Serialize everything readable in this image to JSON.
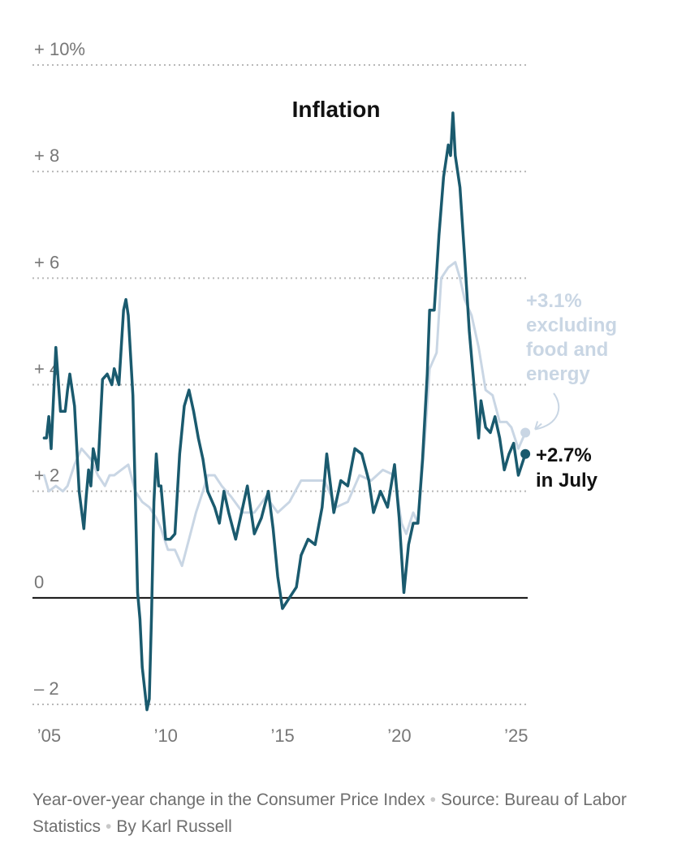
{
  "chart_data": {
    "type": "line",
    "title": "Inflation",
    "xlabel": "",
    "ylabel": "",
    "xlim": [
      2004.5,
      2025.7
    ],
    "ylim": [
      -2,
      10
    ],
    "y_ticks": [
      {
        "value": 10,
        "label": "+ 10%"
      },
      {
        "value": 8,
        "label": "+   8"
      },
      {
        "value": 6,
        "label": "+   6"
      },
      {
        "value": 4,
        "label": "+   4"
      },
      {
        "value": 2,
        "label": "+   2"
      },
      {
        "value": 0,
        "label": "0"
      },
      {
        "value": -2,
        "label": "–   2"
      }
    ],
    "x_ticks": [
      {
        "value": 2005,
        "label": "’05"
      },
      {
        "value": 2010,
        "label": "’10"
      },
      {
        "value": 2015,
        "label": "’15"
      },
      {
        "value": 2020,
        "label": "’20"
      },
      {
        "value": 2025,
        "label": "’25"
      }
    ],
    "grid": "horizontal dotted",
    "series": [
      {
        "name": "excluding food and energy",
        "color": "#c9d6e4",
        "x": [
          2005.0,
          2005.2,
          2005.5,
          2005.8,
          2006.0,
          2006.3,
          2006.6,
          2006.8,
          2007.0,
          2007.3,
          2007.6,
          2007.8,
          2008.0,
          2008.3,
          2008.6,
          2008.9,
          2009.2,
          2009.5,
          2009.8,
          2010.0,
          2010.3,
          2010.6,
          2010.9,
          2011.2,
          2011.5,
          2011.8,
          2012.0,
          2012.3,
          2012.6,
          2013.0,
          2013.5,
          2014.0,
          2014.5,
          2015.0,
          2015.5,
          2016.0,
          2016.5,
          2017.0,
          2017.5,
          2018.0,
          2018.5,
          2019.0,
          2019.5,
          2020.0,
          2020.3,
          2020.5,
          2020.8,
          2021.0,
          2021.3,
          2021.5,
          2021.8,
          2022.0,
          2022.3,
          2022.6,
          2022.8,
          2023.0,
          2023.3,
          2023.6,
          2023.9,
          2024.2,
          2024.5,
          2024.8,
          2025.0,
          2025.3,
          2025.6
        ],
        "values": [
          2.3,
          2.0,
          2.1,
          2.0,
          2.1,
          2.5,
          2.8,
          2.7,
          2.6,
          2.3,
          2.1,
          2.3,
          2.3,
          2.4,
          2.5,
          2.0,
          1.8,
          1.7,
          1.5,
          1.3,
          0.9,
          0.9,
          0.6,
          1.1,
          1.6,
          2.0,
          2.3,
          2.3,
          2.1,
          1.9,
          1.6,
          1.6,
          1.9,
          1.6,
          1.8,
          2.2,
          2.2,
          2.2,
          1.7,
          1.8,
          2.3,
          2.2,
          2.4,
          2.3,
          1.4,
          1.2,
          1.6,
          1.4,
          3.0,
          4.3,
          4.6,
          6.0,
          6.2,
          6.3,
          6.0,
          5.6,
          5.3,
          4.7,
          3.9,
          3.8,
          3.3,
          3.3,
          3.2,
          2.8,
          3.1
        ]
      },
      {
        "name": "",
        "color": "#1a5a6e",
        "x": [
          2005.0,
          2005.1,
          2005.2,
          2005.3,
          2005.5,
          2005.7,
          2005.9,
          2006.0,
          2006.1,
          2006.3,
          2006.5,
          2006.7,
          2006.8,
          2006.9,
          2007.0,
          2007.1,
          2007.3,
          2007.5,
          2007.7,
          2007.9,
          2008.0,
          2008.2,
          2008.4,
          2008.5,
          2008.6,
          2008.8,
          2009.0,
          2009.1,
          2009.2,
          2009.4,
          2009.5,
          2009.6,
          2009.7,
          2009.8,
          2009.9,
          2010.0,
          2010.2,
          2010.4,
          2010.6,
          2010.8,
          2011.0,
          2011.2,
          2011.4,
          2011.6,
          2011.8,
          2012.0,
          2012.3,
          2012.5,
          2012.7,
          2012.9,
          2013.2,
          2013.5,
          2013.7,
          2014.0,
          2014.3,
          2014.6,
          2014.8,
          2015.0,
          2015.2,
          2015.5,
          2015.8,
          2016.0,
          2016.3,
          2016.6,
          2016.9,
          2017.1,
          2017.4,
          2017.7,
          2018.0,
          2018.3,
          2018.6,
          2018.9,
          2019.1,
          2019.4,
          2019.7,
          2020.0,
          2020.2,
          2020.4,
          2020.6,
          2020.8,
          2021.0,
          2021.2,
          2021.4,
          2021.5,
          2021.7,
          2021.9,
          2022.1,
          2022.3,
          2022.4,
          2022.5,
          2022.6,
          2022.8,
          2023.0,
          2023.2,
          2023.4,
          2023.6,
          2023.7,
          2023.9,
          2024.1,
          2024.3,
          2024.5,
          2024.7,
          2024.9,
          2025.1,
          2025.3,
          2025.6
        ],
        "values": [
          3.0,
          3.0,
          3.4,
          2.8,
          4.7,
          3.5,
          3.5,
          3.9,
          4.2,
          3.6,
          2.0,
          1.3,
          1.9,
          2.4,
          2.1,
          2.8,
          2.4,
          4.1,
          4.2,
          4.0,
          4.3,
          4.0,
          5.4,
          5.6,
          5.3,
          3.8,
          0.1,
          -0.4,
          -1.3,
          -2.1,
          -1.9,
          -0.3,
          1.8,
          2.7,
          2.1,
          2.1,
          1.1,
          1.1,
          1.2,
          2.7,
          3.6,
          3.9,
          3.5,
          3.0,
          2.6,
          2.0,
          1.7,
          1.4,
          2.0,
          1.6,
          1.1,
          1.7,
          2.1,
          1.2,
          1.5,
          2.0,
          1.3,
          0.4,
          -0.2,
          0.0,
          0.2,
          0.8,
          1.1,
          1.0,
          1.7,
          2.7,
          1.6,
          2.2,
          2.1,
          2.8,
          2.7,
          2.2,
          1.6,
          2.0,
          1.7,
          2.5,
          1.5,
          0.1,
          1.0,
          1.4,
          1.4,
          2.6,
          4.2,
          5.4,
          5.4,
          6.8,
          7.9,
          8.5,
          8.3,
          9.1,
          8.3,
          7.7,
          6.4,
          5.0,
          4.0,
          3.0,
          3.7,
          3.2,
          3.1,
          3.4,
          3.0,
          2.4,
          2.7,
          2.9,
          2.3,
          2.7
        ]
      }
    ],
    "annotations": [
      {
        "series": 0,
        "value": 3.1,
        "label_lines": [
          "+3.1%",
          "excluding",
          "food and",
          "energy"
        ]
      },
      {
        "series": 1,
        "value": 2.7,
        "label_lines": [
          "+2.7%",
          "in July"
        ]
      }
    ]
  },
  "footer": {
    "description": "Year-over-year change in the Consumer Price Index",
    "source": "Source: Bureau of Labor Statistics",
    "byline": "By Karl Russell",
    "separator": "•"
  }
}
